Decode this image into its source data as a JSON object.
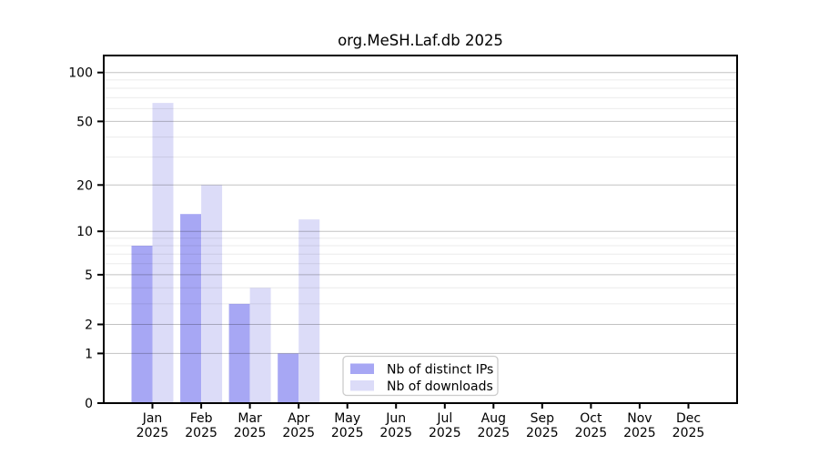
{
  "chart_data": {
    "type": "bar",
    "title": "org.MeSH.Laf.db 2025",
    "categories": [
      "Jan",
      "Feb",
      "Mar",
      "Apr",
      "May",
      "Jun",
      "Jul",
      "Aug",
      "Sep",
      "Oct",
      "Nov",
      "Dec"
    ],
    "year_label": "2025",
    "series": [
      {
        "name": "Nb of distinct IPs",
        "color": "#a7a7f4",
        "values": [
          8,
          13,
          3,
          1,
          0,
          0,
          0,
          0,
          0,
          0,
          0,
          0
        ]
      },
      {
        "name": "Nb of downloads",
        "color": "#dcdcf8",
        "values": [
          65,
          20,
          4,
          12,
          0,
          0,
          0,
          0,
          0,
          0,
          0,
          0
        ]
      }
    ],
    "y_scale": "log1p",
    "y_ticks": [
      0,
      1,
      2,
      5,
      10,
      20,
      50,
      100
    ],
    "y_minor_gridlines": [
      3,
      4,
      6,
      7,
      8,
      9,
      30,
      40,
      60,
      70,
      80,
      90
    ],
    "ylim": [
      0,
      127
    ],
    "xlabel": "",
    "ylabel": "",
    "grid": "horizontal",
    "legend_position": "inside-bottom-center"
  },
  "colors": {
    "background": "#ffffff",
    "axis": "#000000",
    "text": "#000000",
    "major_grid": "rgba(0,0,0,0.24)",
    "minor_grid": "rgba(0,0,0,0.08)",
    "legend_border": "#cccccc",
    "legend_background": "#ffffff"
  }
}
